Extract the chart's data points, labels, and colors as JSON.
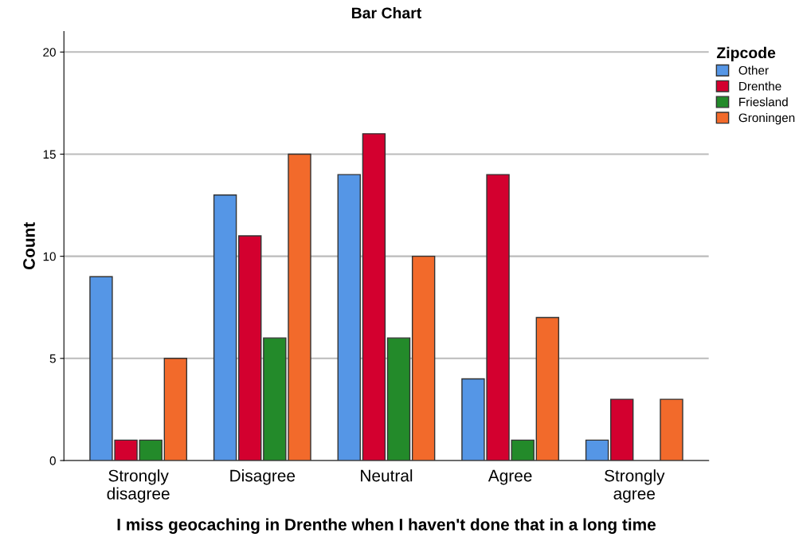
{
  "chart_data": {
    "type": "bar",
    "title": "Bar Chart",
    "xlabel": "I miss geocaching in Drenthe when I haven't done that in a long time",
    "ylabel": "Count",
    "legend_title": "Zipcode",
    "categories": [
      "Strongly\ndisagree",
      "Disagree",
      "Neutral",
      "Agree",
      "Strongly\nagree"
    ],
    "series": [
      {
        "name": "Other",
        "color": "#5596e6",
        "values": [
          9,
          13,
          14,
          4,
          1
        ]
      },
      {
        "name": "Drenthe",
        "color": "#d3002f",
        "values": [
          1,
          11,
          16,
          14,
          3
        ]
      },
      {
        "name": "Friesland",
        "color": "#238a2a",
        "values": [
          1,
          6,
          6,
          1,
          0
        ]
      },
      {
        "name": "Groningen",
        "color": "#f26a2b",
        "values": [
          5,
          15,
          10,
          7,
          3
        ]
      }
    ],
    "ylim": [
      0,
      21
    ],
    "yticks": [
      0,
      5,
      10,
      15,
      20
    ],
    "grid": "y",
    "legend": "top right"
  }
}
